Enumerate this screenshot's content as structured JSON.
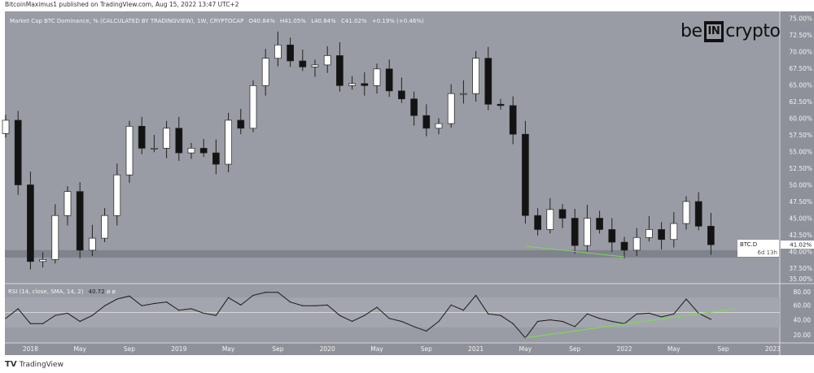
{
  "header": {
    "published": "BitcoinMaximus1 published on TradingView.com, Aug 15, 2022 13:47 UTC+2"
  },
  "legend": {
    "title": "Market Cap BTC Dominance, % (CALCULATED BY TRADINGVIEW), 1W, CRYPTOCAP",
    "open": "O40.84%",
    "high": "H41.05%",
    "low": "L40.84%",
    "close": "C41.02%",
    "change": "+0.19% (+0.46%)"
  },
  "rsi_legend": {
    "label": "RSI (14, close, SMA, 14, 2)",
    "value": "40.72",
    "extra": "ø ø"
  },
  "price_tag": {
    "symbol": "BTC.D",
    "value": "41.02%",
    "countdown": "6d 13h"
  },
  "watermark": {
    "prefix": "be",
    "box": "IN",
    "suffix": "crypto"
  },
  "footer": {
    "brand": "TradingView"
  },
  "colors": {
    "background": "#999ca4",
    "axis": "#8e9199",
    "up": "#ffffff",
    "down": "#131313",
    "trendline": "#7ed957",
    "support": "#7f838c"
  },
  "chart_data": [
    {
      "type": "candlestick",
      "title": "Market Cap BTC Dominance, % (CALCULATED BY TRADINGVIEW), 1W, CRYPTOCAP",
      "ylim": [
        35,
        75
      ],
      "yticks": [
        "75.00%",
        "72.50%",
        "70.00%",
        "67.50%",
        "65.00%",
        "62.50%",
        "60.00%",
        "57.50%",
        "55.00%",
        "52.50%",
        "50.00%",
        "47.50%",
        "45.00%",
        "42.50%",
        "40.00%",
        "37.50%",
        "35.00%"
      ],
      "xticks": [
        "2018",
        "May",
        "Sep",
        "2019",
        "May",
        "Sep",
        "2020",
        "May",
        "Sep",
        "2021",
        "May",
        "Sep",
        "2022",
        "May",
        "Sep",
        "2023"
      ],
      "dates": [
        "2017-11",
        "2017-12",
        "2018-01",
        "2018-02",
        "2018-03",
        "2018-04",
        "2018-05",
        "2018-06",
        "2018-07",
        "2018-08",
        "2018-09",
        "2018-10",
        "2018-11",
        "2018-12",
        "2019-01",
        "2019-02",
        "2019-03",
        "2019-04",
        "2019-05",
        "2019-06",
        "2019-07",
        "2019-08",
        "2019-09",
        "2019-10",
        "2019-11",
        "2019-12",
        "2020-01",
        "2020-02",
        "2020-03",
        "2020-04",
        "2020-05",
        "2020-06",
        "2020-07",
        "2020-08",
        "2020-09",
        "2020-10",
        "2020-11",
        "2020-12",
        "2021-01",
        "2021-02",
        "2021-03",
        "2021-04",
        "2021-05",
        "2021-06",
        "2021-07",
        "2021-08",
        "2021-09",
        "2021-10",
        "2021-11",
        "2021-12",
        "2022-01",
        "2022-02",
        "2022-03",
        "2022-04",
        "2022-05",
        "2022-06",
        "2022-07",
        "2022-08"
      ],
      "close": [
        59.7,
        50.0,
        38.5,
        38.8,
        45.4,
        49.0,
        40.2,
        42.0,
        45.4,
        51.5,
        58.8,
        55.5,
        55.5,
        58.5,
        54.8,
        55.5,
        54.8,
        53.1,
        59.7,
        58.5,
        64.9,
        69.0,
        71.0,
        68.6,
        67.7,
        68.0,
        69.4,
        64.9,
        65.2,
        64.9,
        67.4,
        64.1,
        62.9,
        60.4,
        58.5,
        59.2,
        63.7,
        63.7,
        69.0,
        62.1,
        61.9,
        57.6,
        45.4,
        43.3,
        46.3,
        45.0,
        40.9,
        45.0,
        43.3,
        41.4,
        40.2,
        42.1,
        43.3,
        41.8,
        44.2,
        47.5,
        43.8,
        41.02
      ],
      "support_zone": [
        39.1,
        40.2
      ],
      "trendline": {
        "from": [
          "2021-05",
          40.8
        ],
        "to": [
          "2022-01",
          39.2
        ]
      },
      "last_value": 41.02
    },
    {
      "type": "line",
      "title": "RSI (14, close, SMA, 14, 2)",
      "ylim": [
        10,
        85
      ],
      "yticks": [
        "80.00",
        "60.00",
        "40.00",
        "20.00"
      ],
      "bands": [
        30,
        50,
        70
      ],
      "dates_ref": "same as price",
      "values": [
        42,
        55,
        35,
        35,
        46,
        49,
        38,
        46,
        59,
        68,
        72,
        59,
        62,
        64,
        53,
        55,
        49,
        46,
        70,
        60,
        73,
        77,
        77,
        64,
        59,
        59,
        60,
        46,
        38,
        46,
        57,
        42,
        38,
        31,
        25,
        38,
        60,
        53,
        73,
        48,
        46,
        35,
        16,
        38,
        40,
        38,
        31,
        48,
        42,
        38,
        35,
        48,
        49,
        44,
        48,
        68,
        49,
        40.72
      ],
      "trendline": {
        "from": [
          "2021-05",
          16
        ],
        "to": [
          "2022-10",
          55
        ]
      }
    }
  ]
}
